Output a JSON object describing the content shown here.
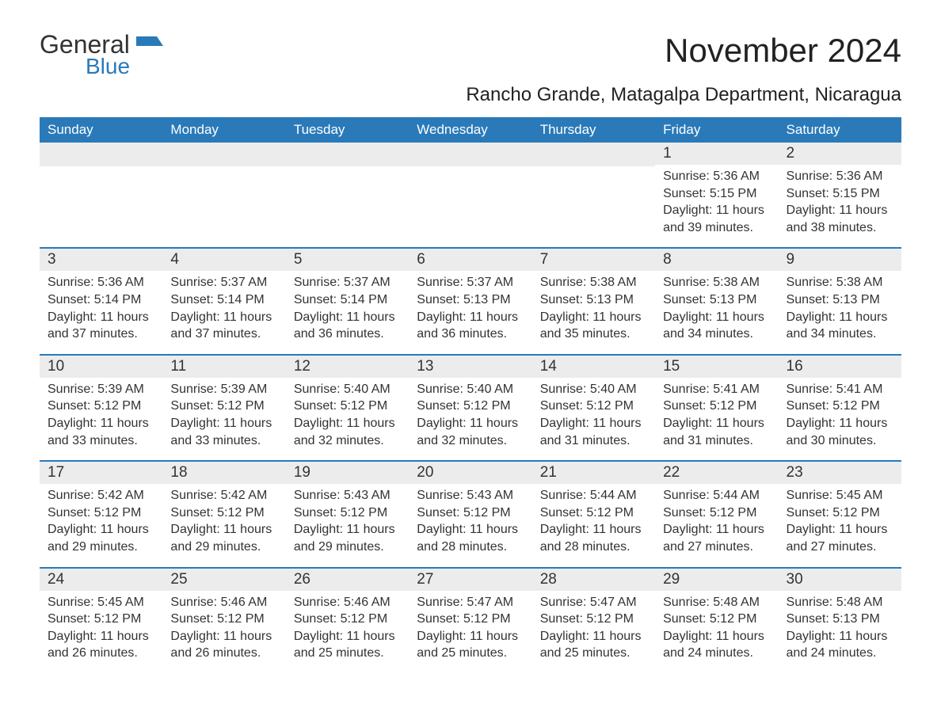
{
  "logo": {
    "word1": "General",
    "word2": "Blue"
  },
  "title": "November 2024",
  "subtitle": "Rancho Grande, Matagalpa Department, Nicaragua",
  "colors": {
    "header_bg": "#2a7ab9",
    "header_text": "#ffffff",
    "daynum_bg": "#ececec",
    "text": "#333333",
    "page_bg": "#ffffff",
    "rule": "#2a7ab9"
  },
  "font_sizes": {
    "title": 42,
    "subtitle": 24,
    "weekday": 17,
    "daynum": 19,
    "body": 16
  },
  "weekdays": [
    "Sunday",
    "Monday",
    "Tuesday",
    "Wednesday",
    "Thursday",
    "Friday",
    "Saturday"
  ],
  "labels": {
    "sunrise": "Sunrise:",
    "sunset": "Sunset:",
    "daylight": "Daylight:"
  },
  "weeks": [
    [
      null,
      null,
      null,
      null,
      null,
      {
        "n": "1",
        "sunrise": "5:36 AM",
        "sunset": "5:15 PM",
        "daylight": "11 hours and 39 minutes."
      },
      {
        "n": "2",
        "sunrise": "5:36 AM",
        "sunset": "5:15 PM",
        "daylight": "11 hours and 38 minutes."
      }
    ],
    [
      {
        "n": "3",
        "sunrise": "5:36 AM",
        "sunset": "5:14 PM",
        "daylight": "11 hours and 37 minutes."
      },
      {
        "n": "4",
        "sunrise": "5:37 AM",
        "sunset": "5:14 PM",
        "daylight": "11 hours and 37 minutes."
      },
      {
        "n": "5",
        "sunrise": "5:37 AM",
        "sunset": "5:14 PM",
        "daylight": "11 hours and 36 minutes."
      },
      {
        "n": "6",
        "sunrise": "5:37 AM",
        "sunset": "5:13 PM",
        "daylight": "11 hours and 36 minutes."
      },
      {
        "n": "7",
        "sunrise": "5:38 AM",
        "sunset": "5:13 PM",
        "daylight": "11 hours and 35 minutes."
      },
      {
        "n": "8",
        "sunrise": "5:38 AM",
        "sunset": "5:13 PM",
        "daylight": "11 hours and 34 minutes."
      },
      {
        "n": "9",
        "sunrise": "5:38 AM",
        "sunset": "5:13 PM",
        "daylight": "11 hours and 34 minutes."
      }
    ],
    [
      {
        "n": "10",
        "sunrise": "5:39 AM",
        "sunset": "5:12 PM",
        "daylight": "11 hours and 33 minutes."
      },
      {
        "n": "11",
        "sunrise": "5:39 AM",
        "sunset": "5:12 PM",
        "daylight": "11 hours and 33 minutes."
      },
      {
        "n": "12",
        "sunrise": "5:40 AM",
        "sunset": "5:12 PM",
        "daylight": "11 hours and 32 minutes."
      },
      {
        "n": "13",
        "sunrise": "5:40 AM",
        "sunset": "5:12 PM",
        "daylight": "11 hours and 32 minutes."
      },
      {
        "n": "14",
        "sunrise": "5:40 AM",
        "sunset": "5:12 PM",
        "daylight": "11 hours and 31 minutes."
      },
      {
        "n": "15",
        "sunrise": "5:41 AM",
        "sunset": "5:12 PM",
        "daylight": "11 hours and 31 minutes."
      },
      {
        "n": "16",
        "sunrise": "5:41 AM",
        "sunset": "5:12 PM",
        "daylight": "11 hours and 30 minutes."
      }
    ],
    [
      {
        "n": "17",
        "sunrise": "5:42 AM",
        "sunset": "5:12 PM",
        "daylight": "11 hours and 29 minutes."
      },
      {
        "n": "18",
        "sunrise": "5:42 AM",
        "sunset": "5:12 PM",
        "daylight": "11 hours and 29 minutes."
      },
      {
        "n": "19",
        "sunrise": "5:43 AM",
        "sunset": "5:12 PM",
        "daylight": "11 hours and 29 minutes."
      },
      {
        "n": "20",
        "sunrise": "5:43 AM",
        "sunset": "5:12 PM",
        "daylight": "11 hours and 28 minutes."
      },
      {
        "n": "21",
        "sunrise": "5:44 AM",
        "sunset": "5:12 PM",
        "daylight": "11 hours and 28 minutes."
      },
      {
        "n": "22",
        "sunrise": "5:44 AM",
        "sunset": "5:12 PM",
        "daylight": "11 hours and 27 minutes."
      },
      {
        "n": "23",
        "sunrise": "5:45 AM",
        "sunset": "5:12 PM",
        "daylight": "11 hours and 27 minutes."
      }
    ],
    [
      {
        "n": "24",
        "sunrise": "5:45 AM",
        "sunset": "5:12 PM",
        "daylight": "11 hours and 26 minutes."
      },
      {
        "n": "25",
        "sunrise": "5:46 AM",
        "sunset": "5:12 PM",
        "daylight": "11 hours and 26 minutes."
      },
      {
        "n": "26",
        "sunrise": "5:46 AM",
        "sunset": "5:12 PM",
        "daylight": "11 hours and 25 minutes."
      },
      {
        "n": "27",
        "sunrise": "5:47 AM",
        "sunset": "5:12 PM",
        "daylight": "11 hours and 25 minutes."
      },
      {
        "n": "28",
        "sunrise": "5:47 AM",
        "sunset": "5:12 PM",
        "daylight": "11 hours and 25 minutes."
      },
      {
        "n": "29",
        "sunrise": "5:48 AM",
        "sunset": "5:12 PM",
        "daylight": "11 hours and 24 minutes."
      },
      {
        "n": "30",
        "sunrise": "5:48 AM",
        "sunset": "5:13 PM",
        "daylight": "11 hours and 24 minutes."
      }
    ]
  ]
}
